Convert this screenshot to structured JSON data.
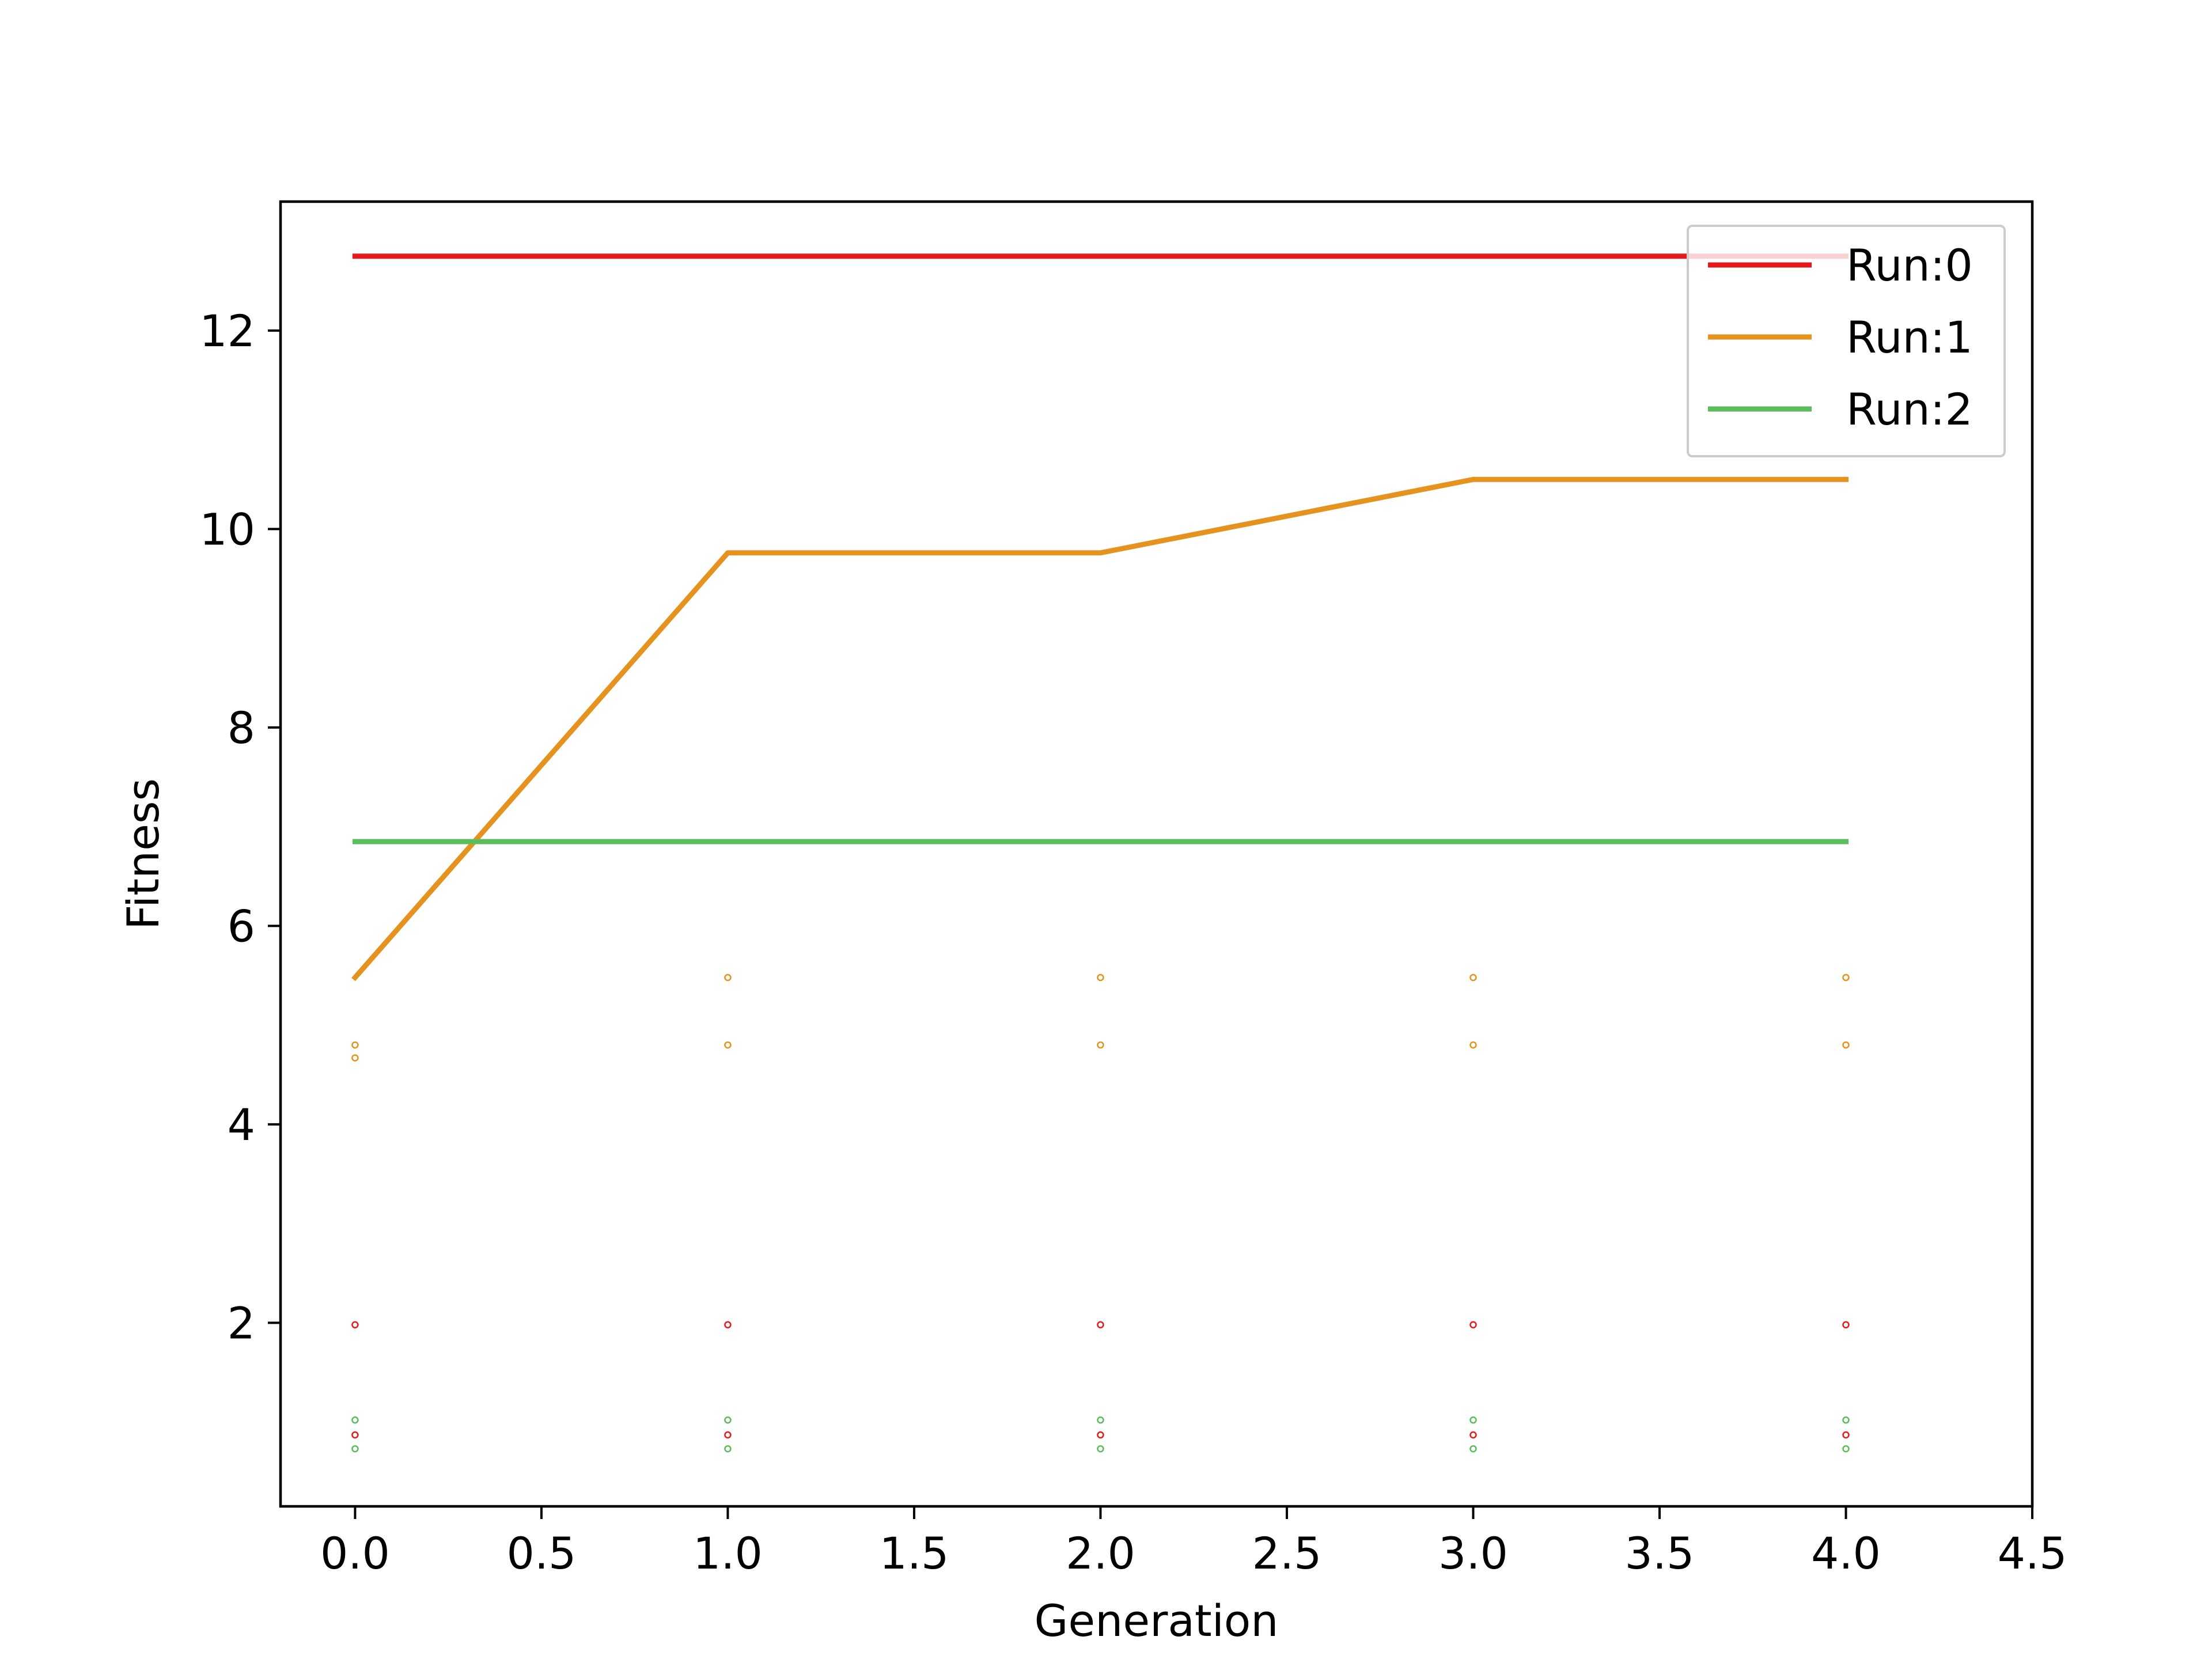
{
  "chart_data": {
    "type": "line",
    "title": "",
    "xlabel": "Generation",
    "ylabel": "Fitness",
    "xlim": [
      -0.2,
      4.5
    ],
    "ylim": [
      0.15,
      13.3
    ],
    "xticks": [
      0.0,
      0.5,
      1.0,
      1.5,
      2.0,
      2.5,
      3.0,
      3.5,
      4.0,
      4.5
    ],
    "xtick_labels": [
      "0.0",
      "0.5",
      "1.0",
      "1.5",
      "2.0",
      "2.5",
      "3.0",
      "3.5",
      "4.0",
      "4.5"
    ],
    "yticks": [
      2,
      4,
      6,
      8,
      10,
      12
    ],
    "ytick_labels": [
      "2",
      "4",
      "6",
      "8",
      "10",
      "12"
    ],
    "grid": false,
    "legend_position": "top-right",
    "series": [
      {
        "name": "Run:0",
        "color": "#e41a1c",
        "x": [
          0,
          1,
          2,
          3,
          4
        ],
        "y": [
          12.75,
          12.75,
          12.75,
          12.75,
          12.75
        ],
        "scatter": [
          {
            "x": 0,
            "y": 1.98
          },
          {
            "x": 0,
            "y": 0.87
          },
          {
            "x": 1,
            "y": 1.98
          },
          {
            "x": 1,
            "y": 0.87
          },
          {
            "x": 2,
            "y": 1.98
          },
          {
            "x": 2,
            "y": 0.87
          },
          {
            "x": 3,
            "y": 1.98
          },
          {
            "x": 3,
            "y": 0.87
          },
          {
            "x": 4,
            "y": 1.98
          },
          {
            "x": 4,
            "y": 0.87
          }
        ]
      },
      {
        "name": "Run:1",
        "color": "#e6921e",
        "x": [
          0,
          1,
          2,
          3,
          4
        ],
        "y": [
          5.48,
          9.76,
          9.76,
          10.5,
          10.5
        ],
        "scatter": [
          {
            "x": 0,
            "y": 4.8
          },
          {
            "x": 0,
            "y": 4.67
          },
          {
            "x": 1,
            "y": 5.48
          },
          {
            "x": 1,
            "y": 4.8
          },
          {
            "x": 2,
            "y": 5.48
          },
          {
            "x": 2,
            "y": 4.8
          },
          {
            "x": 3,
            "y": 5.48
          },
          {
            "x": 3,
            "y": 4.8
          },
          {
            "x": 4,
            "y": 5.48
          },
          {
            "x": 4,
            "y": 4.8
          }
        ]
      },
      {
        "name": "Run:2",
        "color": "#5cbd5c",
        "x": [
          0,
          1,
          2,
          3,
          4
        ],
        "y": [
          6.85,
          6.85,
          6.85,
          6.85,
          6.85
        ],
        "scatter": [
          {
            "x": 0,
            "y": 1.02
          },
          {
            "x": 0,
            "y": 0.73
          },
          {
            "x": 1,
            "y": 1.02
          },
          {
            "x": 1,
            "y": 0.73
          },
          {
            "x": 2,
            "y": 1.02
          },
          {
            "x": 2,
            "y": 0.73
          },
          {
            "x": 3,
            "y": 1.02
          },
          {
            "x": 3,
            "y": 0.73
          },
          {
            "x": 4,
            "y": 1.02
          },
          {
            "x": 4,
            "y": 0.73
          }
        ]
      }
    ]
  }
}
